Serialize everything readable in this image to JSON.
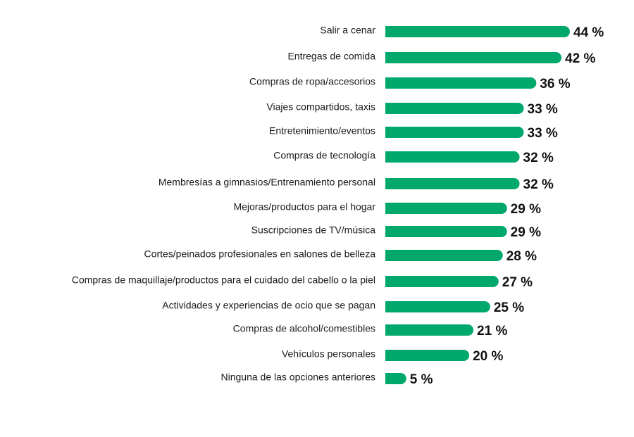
{
  "chart_data": {
    "type": "bar",
    "orientation": "horizontal",
    "categories": [
      "Salir a cenar",
      "Entregas de comida",
      "Compras de ropa/accesorios",
      "Viajes compartidos, taxis",
      "Entretenimiento/eventos",
      "Compras de tecnología",
      "Membresías a gimnasios/Entrenamiento personal",
      "Mejoras/productos para el hogar",
      "Suscripciones de TV/música",
      "Cortes/peinados profesionales en salones de belleza",
      "Compras de maquillaje/productos para el cuidado del cabello o la piel",
      "Actividades y experiencias de ocio que se pagan",
      "Compras de alcohol/comestibles",
      "Vehículos personales",
      "Ninguna de las opciones anteriores"
    ],
    "values": [
      44,
      42,
      36,
      33,
      33,
      32,
      32,
      29,
      29,
      28,
      27,
      25,
      21,
      20,
      5
    ],
    "value_labels": [
      "44 %",
      "42 %",
      "36 %",
      "33 %",
      "33 %",
      "32 %",
      "32 %",
      "29 %",
      "29 %",
      "28 %",
      "27 %",
      "25 %",
      "21 %",
      "20 %",
      "5 %"
    ],
    "title": "",
    "xlabel": "",
    "ylabel": "",
    "xlim": [
      0,
      44
    ],
    "grid": false,
    "legend": "none",
    "bar_color": "#00a86b"
  }
}
